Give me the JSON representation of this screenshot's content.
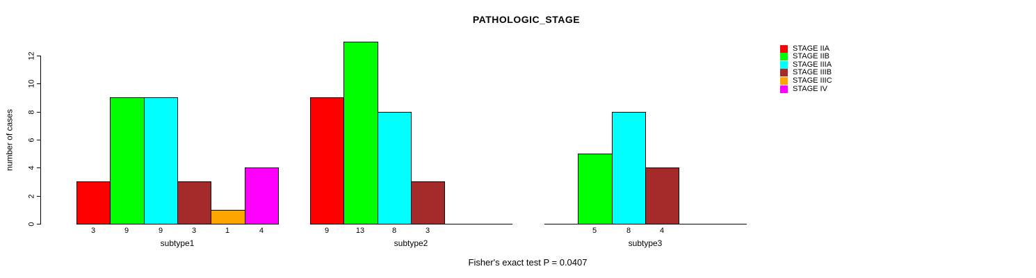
{
  "title": "PATHOLOGIC_STAGE",
  "footnote": "Fisher's exact test P = 0.0407",
  "y_axis": {
    "label": "number of cases",
    "ticks": [
      0,
      2,
      4,
      6,
      8,
      10,
      12
    ]
  },
  "chart_data": {
    "type": "bar",
    "title": "PATHOLOGIC_STAGE",
    "xlabel": "",
    "ylabel": "number of cases",
    "ylim": [
      0,
      12
    ],
    "y_ticks": [
      0,
      2,
      4,
      6,
      8,
      10,
      12
    ],
    "grid": false,
    "legend_position": "right",
    "bar_borders": "#000000",
    "show_bar_value_labels": true,
    "categories": [
      "subtype1",
      "subtype2",
      "subtype3"
    ],
    "series": [
      {
        "name": "STAGE IIA",
        "color": "#FF0000",
        "values": [
          3,
          9,
          0
        ]
      },
      {
        "name": "STAGE IIB",
        "color": "#00FF00",
        "values": [
          9,
          13,
          5
        ]
      },
      {
        "name": "STAGE IIIA",
        "color": "#00FFFF",
        "values": [
          9,
          8,
          8
        ]
      },
      {
        "name": "STAGE IIIB",
        "color": "#A52A2A",
        "values": [
          3,
          3,
          4
        ]
      },
      {
        "name": "STAGE IIIC",
        "color": "#FFA500",
        "values": [
          1,
          0,
          0
        ]
      },
      {
        "name": "STAGE IV",
        "color": "#FF00FF",
        "values": [
          4,
          0,
          0
        ]
      }
    ],
    "annotation": "Fisher's exact test P = 0.0407"
  }
}
